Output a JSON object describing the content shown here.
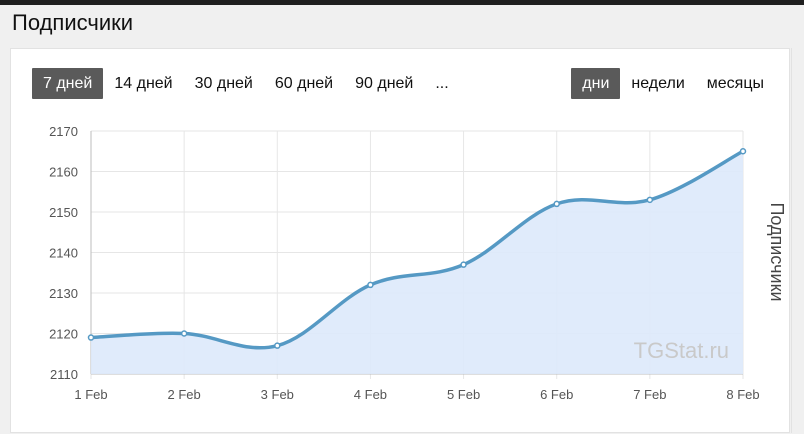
{
  "page": {
    "title": "Подписчики"
  },
  "controls": {
    "ranges": [
      {
        "label": "7 дней",
        "active": true
      },
      {
        "label": "14 дней",
        "active": false
      },
      {
        "label": "30 дней",
        "active": false
      },
      {
        "label": "60 дней",
        "active": false
      },
      {
        "label": "90 дней",
        "active": false
      },
      {
        "label": "...",
        "active": false
      }
    ],
    "units": [
      {
        "label": "дни",
        "active": true
      },
      {
        "label": "недели",
        "active": false
      },
      {
        "label": "месяцы",
        "active": false
      }
    ]
  },
  "chart_data": {
    "type": "area",
    "title": "",
    "xlabel": "",
    "ylabel": "Подписчики",
    "categories": [
      "1 Feb",
      "2 Feb",
      "3 Feb",
      "4 Feb",
      "5 Feb",
      "6 Feb",
      "7 Feb",
      "8 Feb"
    ],
    "series": [
      {
        "values": [
          2119,
          2120,
          2117,
          2132,
          2137,
          2152,
          2153,
          2165
        ]
      }
    ],
    "ylim": [
      2110,
      2170
    ],
    "yticks": [
      2110,
      2120,
      2130,
      2140,
      2150,
      2160,
      2170
    ],
    "grid": true,
    "legend": "none",
    "watermark": "TGStat.ru",
    "colors": {
      "line": "#5599c4",
      "fill": "#dde9fb",
      "grid": "#e6e6e6",
      "active_button": "#5a5a5a"
    }
  }
}
